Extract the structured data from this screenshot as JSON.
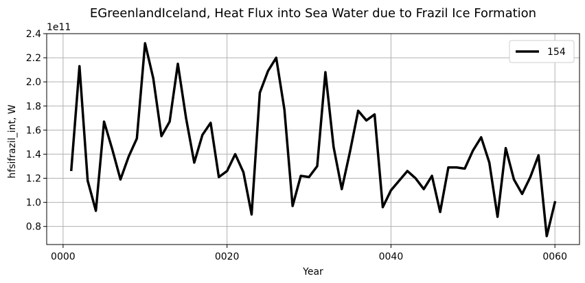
{
  "chart_data": {
    "type": "line",
    "title": "EGreenlandIceland, Heat Flux into Sea Water due to Frazil Ice Formation",
    "xlabel": "Year",
    "ylabel": "hfsifrazil_int, W",
    "y_offset_label": "1e11",
    "xlim": [
      -2,
      63
    ],
    "ylim": [
      0.65,
      2.4
    ],
    "xticks": [
      0,
      20,
      40,
      60
    ],
    "xtick_labels": [
      "0000",
      "0020",
      "0040",
      "0060"
    ],
    "yticks": [
      0.8,
      1.0,
      1.2,
      1.4,
      1.6,
      1.8,
      2.0,
      2.2,
      2.4
    ],
    "ytick_labels": [
      "0.8",
      "1.0",
      "1.2",
      "1.4",
      "1.6",
      "1.8",
      "2.0",
      "2.2",
      "2.4"
    ],
    "grid": true,
    "legend_position": "top-right",
    "series": [
      {
        "name": "154",
        "color": "#000000",
        "x": [
          1,
          2,
          3,
          4,
          5,
          6,
          7,
          8,
          9,
          10,
          11,
          12,
          13,
          14,
          15,
          16,
          17,
          18,
          19,
          20,
          21,
          22,
          23,
          24,
          25,
          26,
          27,
          28,
          29,
          30,
          31,
          32,
          33,
          34,
          35,
          36,
          37,
          38,
          39,
          40,
          41,
          42,
          43,
          44,
          45,
          46,
          47,
          48,
          49,
          50,
          51,
          52,
          53,
          54,
          55,
          56,
          57,
          58,
          59,
          60
        ],
        "values": [
          1.27,
          2.13,
          1.18,
          0.93,
          1.67,
          1.44,
          1.19,
          1.38,
          1.53,
          2.32,
          2.03,
          1.55,
          1.67,
          2.15,
          1.7,
          1.33,
          1.56,
          1.66,
          1.21,
          1.26,
          1.4,
          1.25,
          0.9,
          1.91,
          2.09,
          2.2,
          1.77,
          0.97,
          1.22,
          1.21,
          1.3,
          2.08,
          1.46,
          1.11,
          1.42,
          1.76,
          1.68,
          1.73,
          0.96,
          1.1,
          1.18,
          1.26,
          1.2,
          1.11,
          1.22,
          0.92,
          1.29,
          1.29,
          1.28,
          1.43,
          1.54,
          1.33,
          0.88,
          1.45,
          1.19,
          1.07,
          1.21,
          1.39,
          0.72,
          1.0
        ]
      }
    ]
  }
}
